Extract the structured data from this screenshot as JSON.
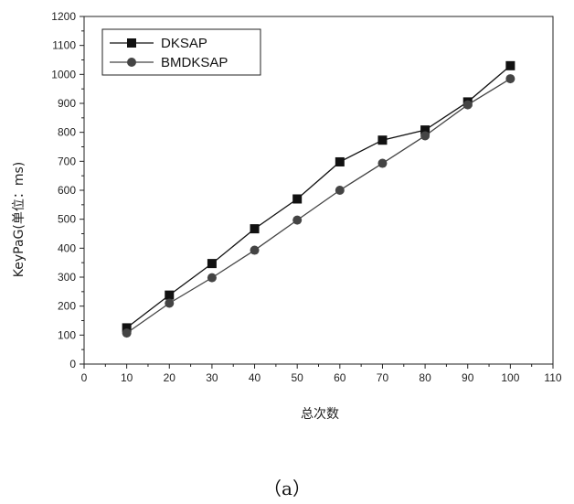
{
  "chart_data": {
    "type": "line",
    "xlabel": "总次数",
    "ylabel": "KeyPaG(单位：ms)",
    "xlim": [
      0,
      110
    ],
    "ylim": [
      0,
      1200
    ],
    "xticks": [
      0,
      10,
      20,
      30,
      40,
      50,
      60,
      70,
      80,
      90,
      100,
      110
    ],
    "yticks": [
      0,
      100,
      200,
      300,
      400,
      500,
      600,
      700,
      800,
      900,
      1000,
      1100,
      1200
    ],
    "grid": false,
    "legend_position": "top-left",
    "x": [
      10,
      20,
      30,
      40,
      50,
      60,
      70,
      80,
      90,
      100
    ],
    "series": [
      {
        "name": "DKSAP",
        "marker": "square",
        "values": [
          125,
          238,
          347,
          467,
          570,
          698,
          773,
          808,
          905,
          1030
        ]
      },
      {
        "name": "BMDKSAP",
        "marker": "circle",
        "values": [
          107,
          210,
          298,
          393,
          497,
          600,
          693,
          788,
          895,
          985
        ]
      }
    ],
    "colors": {
      "DKSAP": "#111111",
      "BMDKSAP": "#444444"
    }
  },
  "caption": "（a）"
}
